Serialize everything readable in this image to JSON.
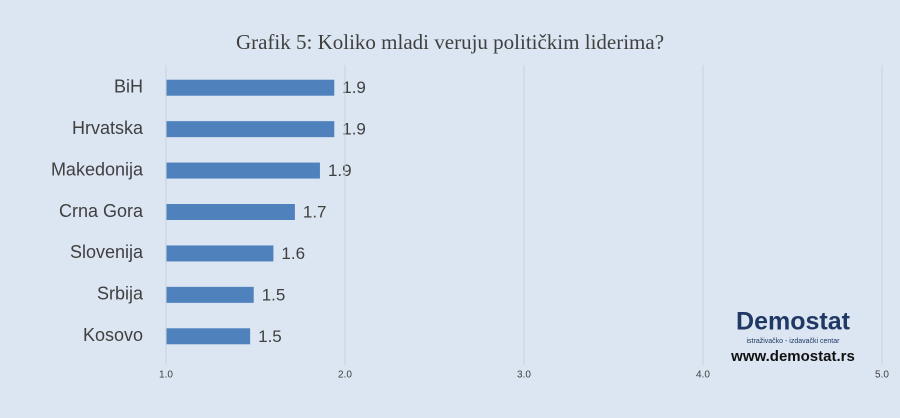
{
  "chart_data": {
    "type": "bar",
    "orientation": "horizontal",
    "title": "Grafik 5: Koliko mladi veruju političkim liderima?",
    "categories": [
      "BiH",
      "Hrvatska",
      "Makedonija",
      "Crna Gora",
      "Slovenija",
      "Srbija",
      "Kosovo"
    ],
    "values": [
      1.94,
      1.94,
      1.86,
      1.72,
      1.6,
      1.49,
      1.47
    ],
    "value_labels": [
      "1.9",
      "1.9",
      "1.9",
      "1.7",
      "1.6",
      "1.5",
      "1.5"
    ],
    "color": "#4f81bd",
    "xlim": [
      1,
      5
    ],
    "xticks": [
      {
        "value": 1,
        "label": "1.0"
      },
      {
        "value": 2,
        "label": "2.0"
      },
      {
        "value": 3,
        "label": "3.0"
      },
      {
        "value": 4,
        "label": "4.0"
      },
      {
        "value": 5,
        "label": "5.0"
      }
    ],
    "grid": true
  },
  "logo": {
    "name": "Demostat",
    "tagline": "istraživačko - izdavački centar",
    "url": "www.demostat.rs"
  }
}
